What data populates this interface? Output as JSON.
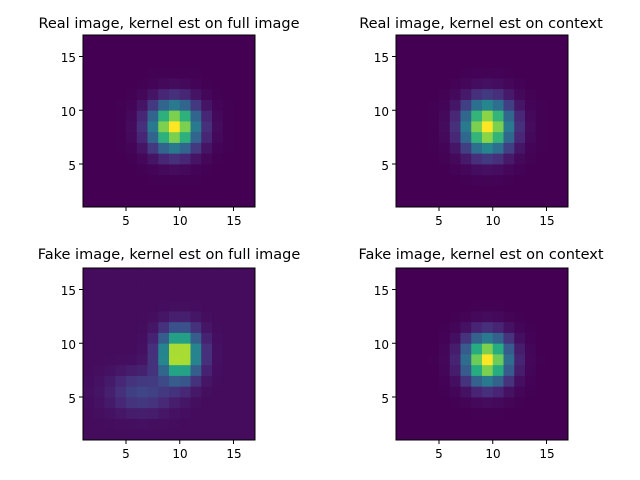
{
  "chart_data": [
    {
      "type": "heatmap",
      "title": "Real image, kernel est on full image",
      "xlabel": "",
      "ylabel": "",
      "grid": false,
      "colormap": "viridis",
      "xlim": [
        1,
        17
      ],
      "ylim": [
        1,
        17
      ],
      "xticks": [
        "5",
        "10",
        "15"
      ],
      "yticks": [
        "5",
        "10",
        "15"
      ],
      "size": 16,
      "center": [
        9.5,
        8.5
      ],
      "sigma": [
        1.5,
        1.5
      ],
      "peak": 1.0,
      "background": 0.0
    },
    {
      "type": "heatmap",
      "title": "Real image, kernel est on context",
      "xlabel": "",
      "ylabel": "",
      "grid": false,
      "colormap": "viridis",
      "xlim": [
        1,
        17
      ],
      "ylim": [
        1,
        17
      ],
      "xticks": [
        "5",
        "10",
        "15"
      ],
      "yticks": [
        "5",
        "10",
        "15"
      ],
      "size": 16,
      "center": [
        9.5,
        8.5
      ],
      "sigma": [
        1.5,
        1.6
      ],
      "peak": 1.0,
      "background": 0.0
    },
    {
      "type": "heatmap",
      "title": "Fake image, kernel est on full image",
      "xlabel": "",
      "ylabel": "",
      "grid": false,
      "colormap": "viridis",
      "xlim": [
        1,
        17
      ],
      "ylim": [
        1,
        17
      ],
      "xticks": [
        "5",
        "10",
        "15"
      ],
      "yticks": [
        "5",
        "10",
        "15"
      ],
      "size": 16,
      "center": [
        10,
        9
      ],
      "sigma": [
        1.2,
        1.5
      ],
      "peak": 1.0,
      "background": 0.03,
      "tail": {
        "center": [
          6.5,
          5.5
        ],
        "sigma": [
          2.0,
          1.3
        ],
        "amplitude": 0.18
      }
    },
    {
      "type": "heatmap",
      "title": "Fake image, kernel est on context",
      "xlabel": "",
      "ylabel": "",
      "grid": false,
      "colormap": "viridis",
      "xlim": [
        1,
        17
      ],
      "ylim": [
        1,
        17
      ],
      "xticks": [
        "5",
        "10",
        "15"
      ],
      "yticks": [
        "5",
        "10",
        "15"
      ],
      "size": 16,
      "center": [
        9.5,
        8.5
      ],
      "sigma": [
        1.4,
        1.5
      ],
      "peak": 1.0,
      "background": 0.0
    }
  ]
}
